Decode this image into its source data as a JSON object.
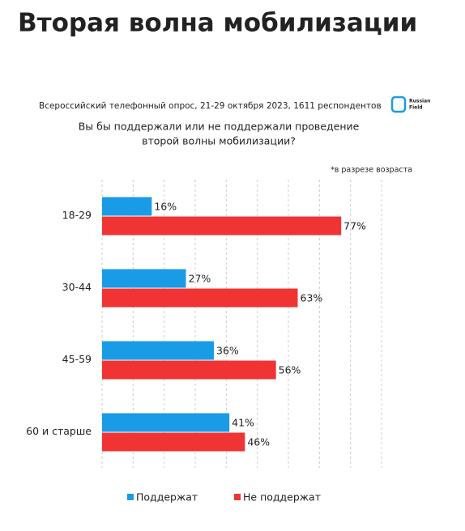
{
  "chart_data": {
    "type": "bar",
    "orientation": "horizontal",
    "title": "Вторая волна мобилизации",
    "subtitle": "Всероссийский телефонный опрос, 21-29 октября 2023, 1611 респондентов",
    "logo": [
      "Russian",
      "Field"
    ],
    "question": [
      "Вы бы поддержали или не поддержали проведение",
      "второй волны мобилизации?"
    ],
    "note": "*в разрезе возраста",
    "categories": [
      "18-29",
      "30-44",
      "45-59",
      "60 и старше"
    ],
    "series": [
      {
        "name": "Поддержат",
        "color": "#1a9be6",
        "values": [
          16,
          27,
          36,
          41
        ],
        "value_labels": [
          "16%",
          "27%",
          "36%",
          "41%"
        ]
      },
      {
        "name": "Не поддержат",
        "color": "#f03434",
        "values": [
          77,
          63,
          56,
          46
        ],
        "value_labels": [
          "77%",
          "63%",
          "56%",
          "46%"
        ]
      }
    ],
    "xlim": [
      0,
      90
    ],
    "xticks": [
      0,
      10,
      20,
      30,
      40,
      50,
      60,
      70,
      80,
      90
    ],
    "grid": true
  }
}
